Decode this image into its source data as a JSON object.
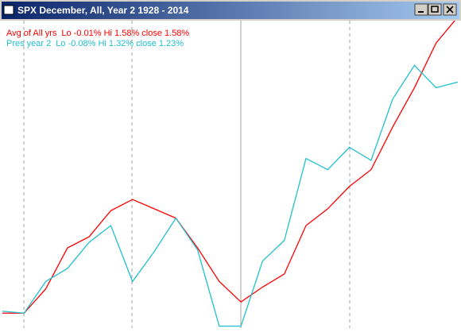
{
  "chart_data": {
    "type": "line",
    "title": "SPX December,  All,  Year 2   1928 -  2014",
    "x": [
      0,
      1,
      2,
      3,
      4,
      5,
      6,
      7,
      8,
      9,
      10,
      11,
      12,
      13,
      14,
      15,
      16,
      17,
      18,
      19,
      20,
      21
    ],
    "xlim": [
      0,
      21
    ],
    "ylim": [
      -0.09,
      1.56
    ],
    "series": [
      {
        "name": "Avg of All yrs",
        "stats": "Lo -0.01%  Hi 1.58%  close 1.58%",
        "color": "#ff0000",
        "values": [
          -0.01,
          -0.01,
          0.12,
          0.34,
          0.4,
          0.54,
          0.6,
          0.55,
          0.5,
          0.34,
          0.16,
          0.05,
          0.13,
          0.2,
          0.46,
          0.55,
          0.67,
          0.76,
          0.99,
          1.2,
          1.44,
          1.58
        ]
      },
      {
        "name": "Pres year 2",
        "stats": "Lo -0.08%  Hi 1.32%  close 1.23%",
        "color": "#20c0d0",
        "values": [
          0.0,
          -0.01,
          0.16,
          0.23,
          0.37,
          0.46,
          0.16,
          0.32,
          0.5,
          0.33,
          -0.08,
          -0.08,
          0.27,
          0.38,
          0.82,
          0.76,
          0.88,
          0.81,
          1.14,
          1.32,
          1.2,
          1.23
        ]
      }
    ]
  }
}
